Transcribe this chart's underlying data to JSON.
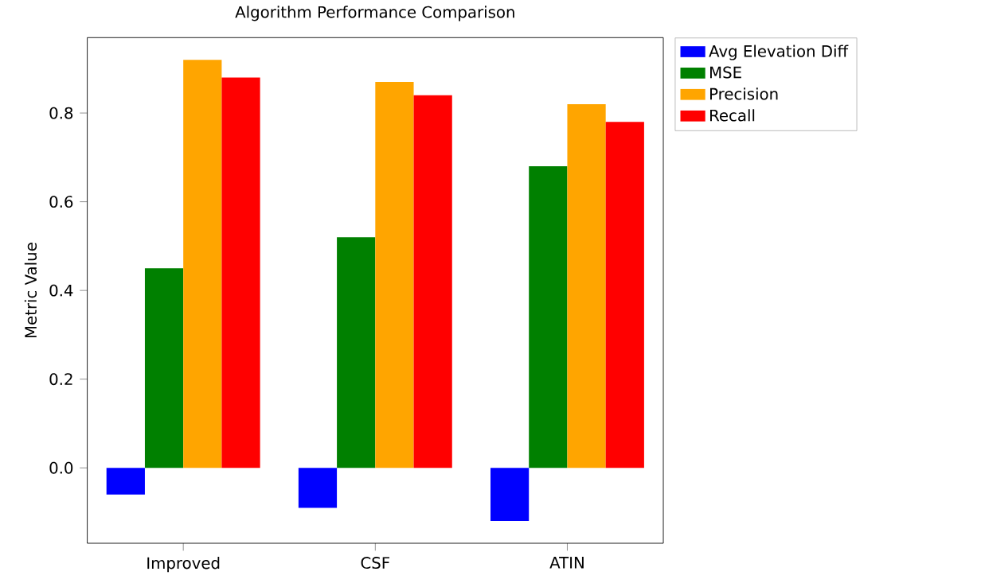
{
  "chart_data": {
    "type": "bar",
    "title": "Algorithm Performance Comparison",
    "ylabel": "Metric Value",
    "categories": [
      "Improved",
      "CSF",
      "ATIN"
    ],
    "series": [
      {
        "name": "Avg Elevation Diff",
        "color": "#0000ff",
        "values": [
          -0.06,
          -0.09,
          -0.12
        ]
      },
      {
        "name": "MSE",
        "color": "#008000",
        "values": [
          0.45,
          0.52,
          0.68
        ]
      },
      {
        "name": "Precision",
        "color": "#ffa500",
        "values": [
          0.92,
          0.87,
          0.82
        ]
      },
      {
        "name": "Recall",
        "color": "#ff0000",
        "values": [
          0.88,
          0.84,
          0.78
        ]
      }
    ],
    "ylim": [
      -0.17,
      0.97
    ],
    "yticks": [
      {
        "value": 0,
        "label": "0.0"
      },
      {
        "value": 0.2,
        "label": "0.2"
      },
      {
        "value": 0.4,
        "label": "0.4"
      },
      {
        "value": 0.6,
        "label": "0.6"
      },
      {
        "value": 0.8,
        "label": "0.8"
      }
    ],
    "legend": "top right"
  }
}
